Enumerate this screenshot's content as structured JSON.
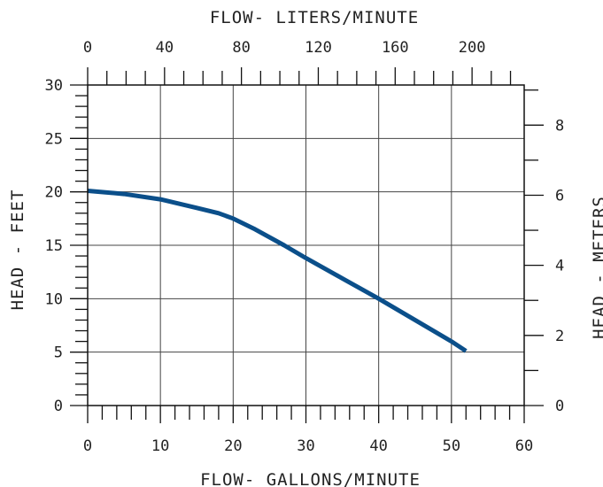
{
  "chart_data": {
    "type": "line",
    "title": "",
    "xlabel": "FLOW- GALLONS/MINUTE",
    "ylabel": "HEAD - FEET",
    "x2label": "FLOW- LITERS/MINUTE",
    "y2label": "HEAD - METERS",
    "xlim": [
      0,
      60
    ],
    "ylim": [
      0,
      30
    ],
    "x_ticks": [
      0,
      10,
      20,
      30,
      40,
      50,
      60
    ],
    "y_ticks": [
      0,
      5,
      10,
      15,
      20,
      25,
      30
    ],
    "x2_ticks": [
      0,
      40,
      80,
      120,
      160,
      200
    ],
    "y2_ticks": [
      0,
      2,
      4,
      6,
      8
    ],
    "grid": true,
    "series": [
      {
        "x": [
          0,
          5,
          10,
          15,
          18,
          20,
          23,
          27,
          30,
          35,
          40,
          45,
          50,
          52
        ],
        "y": [
          20.1,
          19.8,
          19.3,
          18.5,
          18.0,
          17.5,
          16.5,
          15.0,
          13.8,
          11.9,
          10.0,
          8.0,
          6.0,
          5.1
        ],
        "color": "#0b4f8a"
      }
    ]
  }
}
